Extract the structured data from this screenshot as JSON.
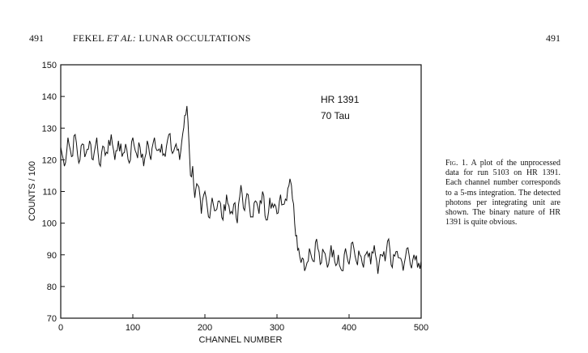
{
  "header": {
    "page_left": "491",
    "title_prefix": "FEKEL ",
    "title_italic": "ET AL:",
    "title_suffix": " LUNAR OCCULTATIONS",
    "page_right": "491"
  },
  "caption": {
    "fig_label": "Fig. 1.",
    "text": " A plot of the unprocessed data for run 5103 on HR 1391. Each channel number corresponds to a 5-ms integration. The detected photons per integrating unit are shown. The binary nature of HR 1391 is quite obvious."
  },
  "chart_data": {
    "type": "line",
    "title": "",
    "xlabel": "CHANNEL NUMBER",
    "ylabel": "COUNTS / 100",
    "xlim": [
      0,
      500
    ],
    "ylim": [
      70,
      150
    ],
    "xticks": [
      0,
      100,
      200,
      300,
      400,
      500
    ],
    "yticks": [
      70,
      80,
      90,
      100,
      110,
      120,
      130,
      140,
      150
    ],
    "grid": false,
    "legend": "none",
    "annotations": [
      "HR 1391",
      "70 Tau"
    ],
    "line_color": "#111111",
    "series": [
      {
        "x": [
          0,
          5,
          10,
          15,
          20,
          25,
          30,
          35,
          40,
          45,
          50,
          55,
          60,
          65,
          70,
          75,
          80,
          85,
          90,
          95,
          100,
          105,
          110,
          115,
          120,
          125,
          130,
          135,
          140,
          145,
          150,
          155,
          160,
          165,
          168,
          172,
          175,
          178,
          180,
          183,
          186,
          190,
          195,
          200,
          205,
          210,
          215,
          220,
          225,
          230,
          235,
          240,
          245,
          250,
          255,
          260,
          265,
          270,
          275,
          280,
          285,
          290,
          295,
          300,
          305,
          310,
          315,
          318,
          320,
          323,
          326,
          330,
          335,
          340,
          345,
          350,
          355,
          360,
          365,
          370,
          375,
          380,
          385,
          390,
          395,
          400,
          405,
          410,
          415,
          420,
          425,
          430,
          435,
          440,
          445,
          450,
          455,
          460,
          465,
          470,
          475,
          480,
          485,
          490,
          495,
          500
        ],
        "y": [
          124,
          118,
          127,
          121,
          128,
          119,
          125,
          122,
          126,
          120,
          127,
          118,
          124,
          122,
          128,
          120,
          126,
          121,
          125,
          119,
          127,
          122,
          124,
          118,
          126,
          120,
          127,
          123,
          125,
          121,
          128,
          122,
          125,
          120,
          126,
          134,
          137,
          125,
          115,
          118,
          108,
          112,
          103,
          110,
          102,
          108,
          104,
          107,
          101,
          109,
          103,
          106,
          100,
          112,
          104,
          109,
          102,
          107,
          103,
          110,
          101,
          108,
          105,
          103,
          109,
          106,
          111,
          114,
          112,
          106,
          96,
          92,
          89,
          86,
          92,
          88,
          95,
          87,
          91,
          86,
          93,
          88,
          90,
          85,
          92,
          87,
          94,
          88,
          90,
          86,
          91,
          87,
          93,
          84,
          90,
          88,
          95,
          86,
          91,
          89,
          85,
          92,
          87,
          90,
          86,
          88
        ]
      }
    ]
  }
}
